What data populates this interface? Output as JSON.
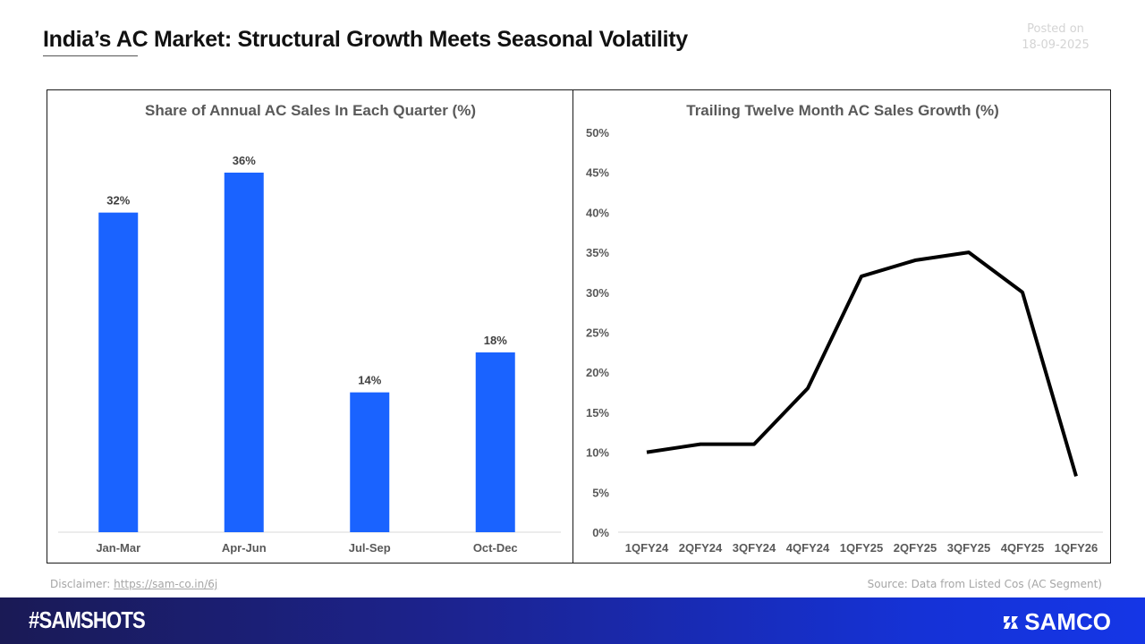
{
  "header": {
    "title": "India’s AC Market: Structural Growth Meets Seasonal Volatility",
    "posted_label": "Posted on",
    "posted_date": "18-09-2025"
  },
  "footer": {
    "disclaimer_label": "Disclaimer:",
    "disclaimer_link": "https://sam-co.in/6j",
    "source": "Source: Data from Listed Cos (AC Segment)",
    "hashtag": "#SAMSHOTS",
    "brand": "SAMCO",
    "brand_icon": "samco-logo-icon"
  },
  "colors": {
    "bar": "#1a63ff",
    "line": "#000000",
    "footer_start": "#1a1a55",
    "footer_end": "#1536e6"
  },
  "chart_data": [
    {
      "type": "bar",
      "title": "Share of Annual AC Sales In Each Quarter (%)",
      "categories": [
        "Jan-Mar",
        "Apr-Jun",
        "Jul-Sep",
        "Oct-Dec"
      ],
      "values": [
        32,
        36,
        14,
        18
      ],
      "data_labels": [
        "32%",
        "36%",
        "14%",
        "18%"
      ],
      "xlabel": "",
      "ylabel": "",
      "ylim": [
        0,
        36
      ],
      "grid": false,
      "legend": "none"
    },
    {
      "type": "line",
      "title": "Trailing Twelve Month AC Sales Growth (%)",
      "categories": [
        "1QFY24",
        "2QFY24",
        "3QFY24",
        "4QFY24",
        "1QFY25",
        "2QFY25",
        "3QFY25",
        "4QFY25",
        "1QFY26"
      ],
      "values": [
        10,
        11,
        11,
        18,
        32,
        34,
        35,
        30,
        7
      ],
      "yticks": [
        "0%",
        "5%",
        "10%",
        "15%",
        "20%",
        "25%",
        "30%",
        "35%",
        "40%",
        "45%",
        "50%"
      ],
      "xlabel": "",
      "ylabel": "",
      "ylim": [
        0,
        50
      ],
      "grid": false,
      "legend": "none"
    }
  ]
}
